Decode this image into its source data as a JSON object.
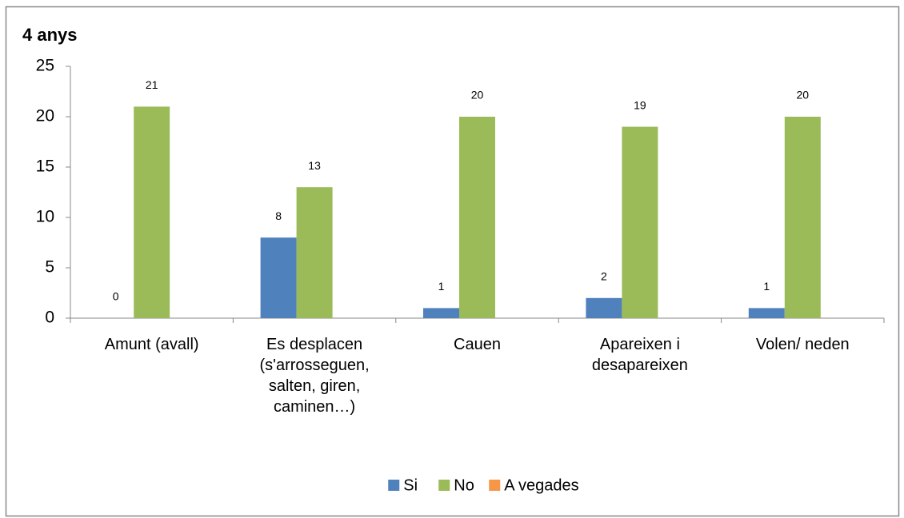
{
  "chart_data": {
    "type": "bar",
    "title": "4 anys",
    "categories": [
      "Amunt (avall)",
      "Es desplacen (s'arrosseguen, salten, giren, caminen…)",
      "Cauen",
      "Apareixen i desapareixen",
      "Volen/ neden"
    ],
    "series": [
      {
        "name": "Si",
        "color": "#4f81bd",
        "values": [
          0,
          8,
          1,
          2,
          1
        ]
      },
      {
        "name": "No",
        "color": "#9bbb59",
        "values": [
          21,
          13,
          20,
          19,
          20
        ]
      },
      {
        "name": "A vegades",
        "color": "#f79646",
        "values": [
          null,
          null,
          null,
          null,
          null
        ]
      }
    ],
    "ylim": [
      0,
      25
    ],
    "yticks": [
      0,
      5,
      10,
      15,
      20,
      25
    ],
    "grid": false,
    "legend": "bottom"
  }
}
